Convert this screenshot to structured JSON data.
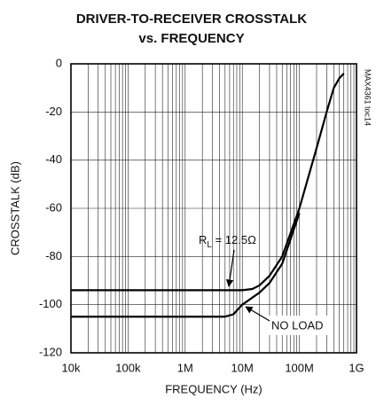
{
  "chart_data": {
    "type": "line",
    "title": [
      "DRIVER-TO-RECEIVER CROSSTALK",
      "vs. FREQUENCY"
    ],
    "xlabel": "FREQUENCY (Hz)",
    "ylabel": "CROSSTALK (dB)",
    "side_label": "MAX4361 toc14",
    "xscale": "log",
    "xlim": [
      10000,
      1000000000
    ],
    "xticks": [
      {
        "value": 10000,
        "label": "10k"
      },
      {
        "value": 100000,
        "label": "100k"
      },
      {
        "value": 1000000,
        "label": "1M"
      },
      {
        "value": 10000000,
        "label": "10M"
      },
      {
        "value": 100000000,
        "label": "100M"
      },
      {
        "value": 1000000000,
        "label": "1G"
      }
    ],
    "ylim": [
      -120,
      0
    ],
    "yticks": [
      0,
      -20,
      -40,
      -60,
      -80,
      -100,
      -120
    ],
    "grid": true,
    "minor_grid": true,
    "series": [
      {
        "color": "#000000",
        "x": [
          10000,
          1000000,
          10000000,
          15000000,
          20000000,
          30000000,
          50000000,
          100000000,
          200000000,
          300000000,
          400000000,
          500000000,
          600000000
        ],
        "values": [
          -94,
          -94,
          -94,
          -93.5,
          -92,
          -88,
          -80,
          -60,
          -35,
          -20,
          -10,
          -6,
          -4
        ]
      },
      {
        "color": "#000000",
        "x": [
          10000,
          1000000,
          5000000,
          7000000,
          10000000,
          20000000,
          30000000,
          50000000,
          100000000
        ],
        "values": [
          -105,
          -105,
          -105,
          -104,
          -100,
          -95,
          -91,
          -83,
          -62
        ]
      }
    ],
    "annotations": [
      {
        "text": "R",
        "subscript": "L",
        "suffix": " = 12.5Ω"
      },
      {
        "text": "NO LOAD"
      }
    ]
  }
}
